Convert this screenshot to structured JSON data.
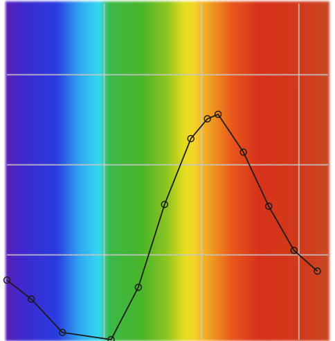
{
  "chart_data": {
    "type": "line",
    "x": [
      0,
      0.25,
      0.57,
      1.07,
      1.35,
      1.62,
      1.89,
      2.06,
      2.17,
      2.43,
      2.69,
      2.95,
      3.19
    ],
    "values": [
      0.72,
      0.51,
      0.14,
      0.06,
      0.64,
      1.56,
      2.29,
      2.51,
      2.56,
      2.14,
      1.54,
      1.05,
      0.82
    ],
    "color": "#1a1a1a",
    "xlim": [
      0,
      3.3
    ],
    "ylim": [
      0.06,
      3.79
    ],
    "xticks": [
      1,
      2,
      3
    ],
    "yticks": [
      1,
      2,
      3
    ],
    "grid": true
  }
}
